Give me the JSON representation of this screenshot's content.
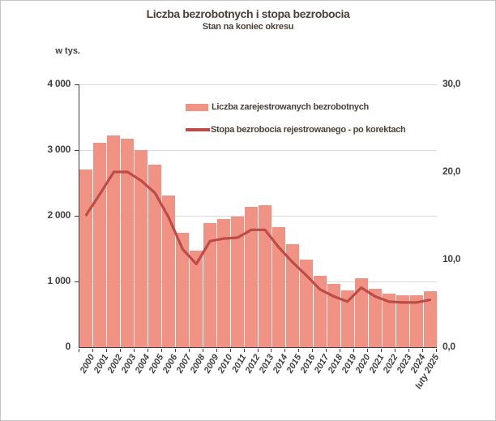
{
  "chart": {
    "title": "Liczba bezrobotnych i stopa bezrobocia",
    "subtitle": "Stan na koniec okresu",
    "unit_label": "w tys.",
    "legend": {
      "bars": "Liczba zarejestrowanych bezrobotnych",
      "line": "Stopa bezrobocia rejestrowanego - po korektach"
    },
    "left_axis": {
      "ticks": [
        "4 000",
        "3 000",
        "2 000",
        "1 000",
        "0"
      ],
      "max": 4000
    },
    "right_axis": {
      "ticks": [
        "30,0",
        "20,0",
        "10,0",
        "0,0"
      ],
      "max": 30
    },
    "colors": {
      "bar_fill": "#f09385",
      "line_stroke": "#be4b48",
      "gridline": "#d9d9d9",
      "axis_line": "#404040",
      "title_text": "#4b4139",
      "label_text": "#404040"
    }
  },
  "chart_data": {
    "type": "bar",
    "title": "Liczba bezrobotnych i stopa bezrobocia",
    "subtitle": "Stan na koniec okresu",
    "categories": [
      "2000",
      "2001",
      "2002",
      "2003",
      "2004",
      "2005",
      "2006",
      "2007",
      "2008",
      "2009",
      "2010",
      "2011",
      "2012",
      "2013",
      "2014",
      "2015",
      "2016",
      "2017",
      "2018",
      "2019",
      "2020",
      "2021",
      "2022",
      "2023",
      "2024",
      "luty 2025"
    ],
    "series": [
      {
        "name": "Liczba zarejestrowanych bezrobotnych",
        "type": "bar",
        "axis": "left",
        "unit": "tys.",
        "values": [
          2703,
          3115,
          3217,
          3176,
          3000,
          2773,
          2309,
          1747,
          1474,
          1893,
          1955,
          1983,
          2137,
          2158,
          1825,
          1563,
          1335,
          1082,
          969,
          866,
          1046,
          895,
          812,
          788,
          787,
          846
        ]
      },
      {
        "name": "Stopa bezrobocia rejestrowanego - po korektach",
        "type": "line",
        "axis": "right",
        "unit": "%",
        "values": [
          15.1,
          17.5,
          20.0,
          20.0,
          19.0,
          17.6,
          14.8,
          11.2,
          9.5,
          12.1,
          12.4,
          12.5,
          13.4,
          13.4,
          11.4,
          9.7,
          8.2,
          6.6,
          5.8,
          5.2,
          6.8,
          5.8,
          5.2,
          5.1,
          5.1,
          5.4
        ]
      }
    ],
    "ylabel_left": "w tys.",
    "ylim_left": [
      0,
      4000
    ],
    "ylim_right": [
      0,
      30
    ],
    "grid": "horizontal gridlines every 1000 on left axis",
    "legend_position": "inside top center"
  }
}
